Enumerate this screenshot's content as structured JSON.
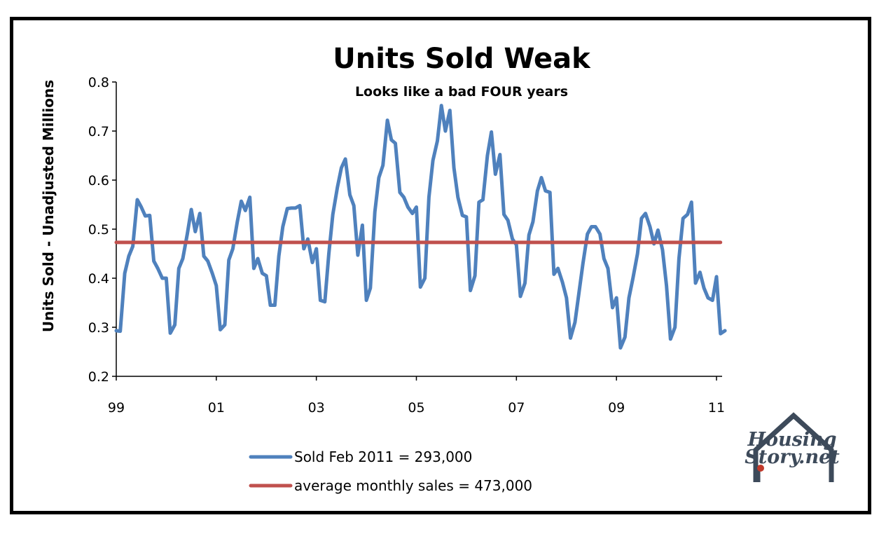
{
  "chart_data": {
    "type": "line",
    "title": "Units Sold Weak",
    "subtitle": "Looks like a bad FOUR years",
    "ylabel": "Units Sold - Unadjusted Millions",
    "xlabel": "",
    "ylim": [
      0.2,
      0.8
    ],
    "yticks": [
      "0.2",
      "0.3",
      "0.4",
      "0.5",
      "0.6",
      "0.7",
      "0.8"
    ],
    "xlim": [
      1999.0,
      2011.0
    ],
    "xticks": [
      {
        "value": 1999,
        "label": "99"
      },
      {
        "value": 2001,
        "label": "01"
      },
      {
        "value": 2003,
        "label": "03"
      },
      {
        "value": 2005,
        "label": "05"
      },
      {
        "value": 2007,
        "label": "07"
      },
      {
        "value": 2009,
        "label": "09"
      },
      {
        "value": 2011,
        "label": "11"
      }
    ],
    "legend_position": "bottom-center",
    "series": [
      {
        "name": "Sold Feb 2011 =  293,000",
        "color": "#4f81bd",
        "points": [
          [
            1999.0,
            0.293
          ],
          [
            1999.08,
            0.292
          ],
          [
            1999.17,
            0.41
          ],
          [
            1999.25,
            0.445
          ],
          [
            1999.33,
            0.465
          ],
          [
            1999.42,
            0.56
          ],
          [
            1999.5,
            0.545
          ],
          [
            1999.58,
            0.527
          ],
          [
            1999.67,
            0.528
          ],
          [
            1999.75,
            0.435
          ],
          [
            1999.83,
            0.42
          ],
          [
            1999.92,
            0.4
          ],
          [
            2000.0,
            0.4
          ],
          [
            2000.08,
            0.288
          ],
          [
            2000.17,
            0.305
          ],
          [
            2000.25,
            0.42
          ],
          [
            2000.33,
            0.44
          ],
          [
            2000.42,
            0.49
          ],
          [
            2000.5,
            0.54
          ],
          [
            2000.58,
            0.495
          ],
          [
            2000.67,
            0.532
          ],
          [
            2000.75,
            0.445
          ],
          [
            2000.83,
            0.435
          ],
          [
            2000.92,
            0.41
          ],
          [
            2001.0,
            0.385
          ],
          [
            2001.08,
            0.295
          ],
          [
            2001.17,
            0.305
          ],
          [
            2001.25,
            0.437
          ],
          [
            2001.33,
            0.46
          ],
          [
            2001.42,
            0.515
          ],
          [
            2001.5,
            0.557
          ],
          [
            2001.58,
            0.538
          ],
          [
            2001.67,
            0.565
          ],
          [
            2001.75,
            0.42
          ],
          [
            2001.83,
            0.44
          ],
          [
            2001.92,
            0.41
          ],
          [
            2002.0,
            0.405
          ],
          [
            2002.08,
            0.345
          ],
          [
            2002.17,
            0.345
          ],
          [
            2002.25,
            0.445
          ],
          [
            2002.33,
            0.505
          ],
          [
            2002.42,
            0.542
          ],
          [
            2002.5,
            0.543
          ],
          [
            2002.58,
            0.543
          ],
          [
            2002.67,
            0.548
          ],
          [
            2002.75,
            0.46
          ],
          [
            2002.83,
            0.48
          ],
          [
            2002.92,
            0.432
          ],
          [
            2003.0,
            0.46
          ],
          [
            2003.08,
            0.355
          ],
          [
            2003.17,
            0.352
          ],
          [
            2003.25,
            0.45
          ],
          [
            2003.33,
            0.53
          ],
          [
            2003.42,
            0.585
          ],
          [
            2003.5,
            0.625
          ],
          [
            2003.58,
            0.643
          ],
          [
            2003.67,
            0.57
          ],
          [
            2003.75,
            0.548
          ],
          [
            2003.83,
            0.447
          ],
          [
            2003.92,
            0.508
          ],
          [
            2004.0,
            0.355
          ],
          [
            2004.08,
            0.38
          ],
          [
            2004.17,
            0.535
          ],
          [
            2004.25,
            0.605
          ],
          [
            2004.33,
            0.63
          ],
          [
            2004.42,
            0.722
          ],
          [
            2004.5,
            0.682
          ],
          [
            2004.58,
            0.675
          ],
          [
            2004.67,
            0.575
          ],
          [
            2004.75,
            0.565
          ],
          [
            2004.83,
            0.545
          ],
          [
            2004.92,
            0.532
          ],
          [
            2005.0,
            0.545
          ],
          [
            2005.08,
            0.382
          ],
          [
            2005.17,
            0.4
          ],
          [
            2005.25,
            0.565
          ],
          [
            2005.33,
            0.64
          ],
          [
            2005.42,
            0.68
          ],
          [
            2005.5,
            0.752
          ],
          [
            2005.58,
            0.7
          ],
          [
            2005.67,
            0.742
          ],
          [
            2005.75,
            0.625
          ],
          [
            2005.83,
            0.565
          ],
          [
            2005.92,
            0.528
          ],
          [
            2006.0,
            0.525
          ],
          [
            2006.08,
            0.375
          ],
          [
            2006.17,
            0.405
          ],
          [
            2006.25,
            0.555
          ],
          [
            2006.33,
            0.56
          ],
          [
            2006.42,
            0.65
          ],
          [
            2006.5,
            0.698
          ],
          [
            2006.58,
            0.612
          ],
          [
            2006.67,
            0.652
          ],
          [
            2006.75,
            0.53
          ],
          [
            2006.83,
            0.518
          ],
          [
            2006.92,
            0.48
          ],
          [
            2007.0,
            0.468
          ],
          [
            2007.08,
            0.363
          ],
          [
            2007.17,
            0.39
          ],
          [
            2007.25,
            0.488
          ],
          [
            2007.33,
            0.515
          ],
          [
            2007.42,
            0.578
          ],
          [
            2007.5,
            0.605
          ],
          [
            2007.58,
            0.578
          ],
          [
            2007.67,
            0.575
          ],
          [
            2007.75,
            0.408
          ],
          [
            2007.83,
            0.42
          ],
          [
            2007.92,
            0.392
          ],
          [
            2008.0,
            0.36
          ],
          [
            2008.08,
            0.278
          ],
          [
            2008.17,
            0.31
          ],
          [
            2008.25,
            0.37
          ],
          [
            2008.33,
            0.43
          ],
          [
            2008.42,
            0.49
          ],
          [
            2008.5,
            0.505
          ],
          [
            2008.58,
            0.505
          ],
          [
            2008.67,
            0.49
          ],
          [
            2008.75,
            0.44
          ],
          [
            2008.83,
            0.42
          ],
          [
            2008.92,
            0.34
          ],
          [
            2009.0,
            0.36
          ],
          [
            2009.08,
            0.258
          ],
          [
            2009.17,
            0.28
          ],
          [
            2009.25,
            0.36
          ],
          [
            2009.33,
            0.4
          ],
          [
            2009.42,
            0.45
          ],
          [
            2009.5,
            0.522
          ],
          [
            2009.58,
            0.532
          ],
          [
            2009.67,
            0.505
          ],
          [
            2009.75,
            0.47
          ],
          [
            2009.83,
            0.498
          ],
          [
            2009.92,
            0.458
          ],
          [
            2010.0,
            0.385
          ],
          [
            2010.08,
            0.276
          ],
          [
            2010.17,
            0.3
          ],
          [
            2010.25,
            0.44
          ],
          [
            2010.33,
            0.522
          ],
          [
            2010.42,
            0.53
          ],
          [
            2010.5,
            0.555
          ],
          [
            2010.58,
            0.39
          ],
          [
            2010.67,
            0.412
          ],
          [
            2010.75,
            0.38
          ],
          [
            2010.83,
            0.36
          ],
          [
            2010.92,
            0.355
          ],
          [
            2011.0,
            0.403
          ],
          [
            2011.08,
            0.287
          ],
          [
            2011.17,
            0.293
          ]
        ]
      },
      {
        "name": "average monthly sales = 473,000",
        "color": "#c0504d",
        "points": [
          [
            1999.0,
            0.473
          ],
          [
            2011.08,
            0.473
          ]
        ]
      }
    ]
  },
  "logo": {
    "line1": "Housing",
    "line2": "Story.net"
  }
}
